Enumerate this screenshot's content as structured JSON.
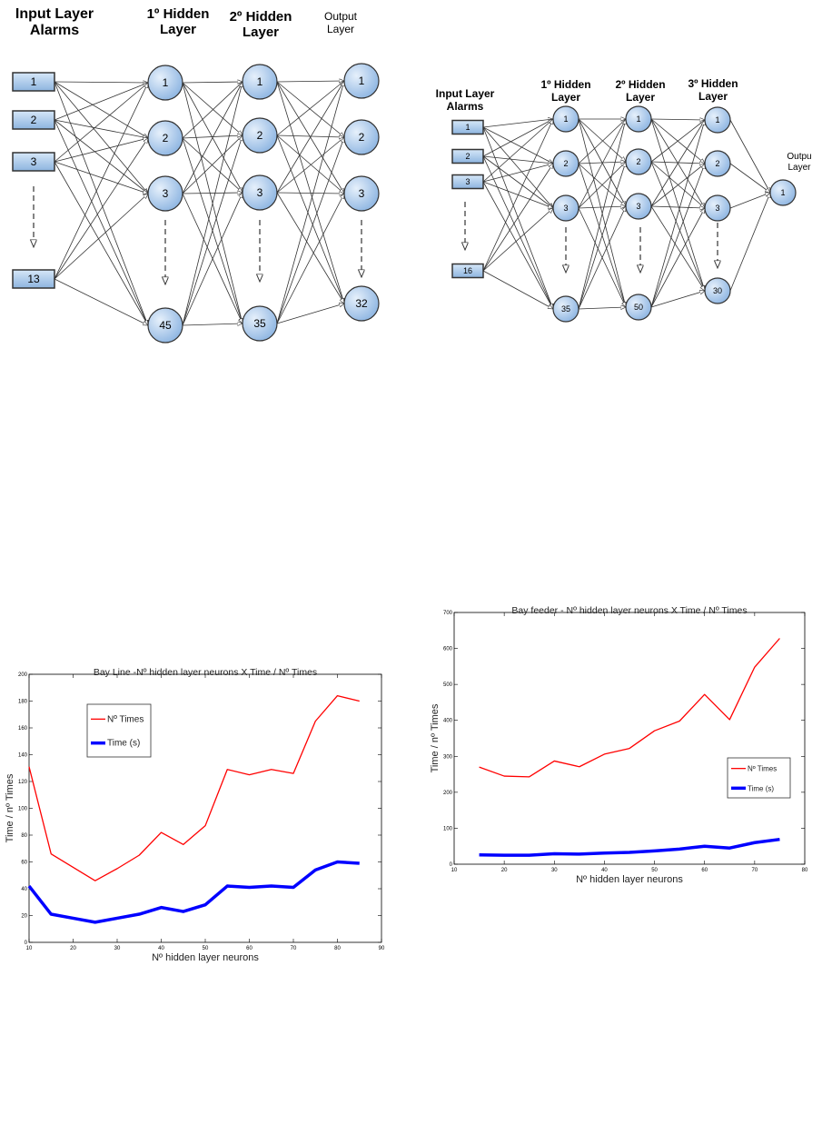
{
  "diagrams": [
    {
      "layers": [
        {
          "title": [
            "Input Layer",
            "Alarms"
          ],
          "kind": "box",
          "nodes": [
            "1",
            "2",
            "3",
            "13"
          ]
        },
        {
          "title": [
            "1º Hidden",
            "Layer"
          ],
          "kind": "circle",
          "nodes": [
            "1",
            "2",
            "3",
            "45"
          ]
        },
        {
          "title": [
            "2º Hidden",
            "Layer"
          ],
          "kind": "circle",
          "nodes": [
            "1",
            "2",
            "3",
            "35"
          ]
        },
        {
          "title": [
            "Output",
            "Layer"
          ],
          "kind": "circle",
          "nodes": [
            "1",
            "2",
            "3",
            "32"
          ]
        }
      ]
    },
    {
      "layers": [
        {
          "title": [
            "Input Layer",
            "Alarms"
          ],
          "kind": "box",
          "nodes": [
            "1",
            "2",
            "3",
            "16"
          ]
        },
        {
          "title": [
            "1º Hidden",
            "Layer"
          ],
          "kind": "circle",
          "nodes": [
            "1",
            "2",
            "3",
            "35"
          ]
        },
        {
          "title": [
            "2º Hidden",
            "Layer"
          ],
          "kind": "circle",
          "nodes": [
            "1",
            "2",
            "3",
            "50"
          ]
        },
        {
          "title": [
            "3º Hidden",
            "Layer"
          ],
          "kind": "circle",
          "nodes": [
            "1",
            "2",
            "3",
            "30"
          ]
        },
        {
          "title": [
            "Outpu",
            "Layer"
          ],
          "kind": "circle",
          "nodes": [
            "1"
          ]
        }
      ]
    }
  ],
  "chart_data": [
    {
      "type": "line",
      "title": "Bay Line -Nº hidden layer neurons X Time / Nº Times",
      "xlabel": "Nº hidden layer neurons",
      "ylabel": "Time / nº Times",
      "xlim": [
        10,
        90
      ],
      "ylim": [
        0,
        200
      ],
      "xticks": [
        10,
        20,
        30,
        40,
        50,
        60,
        70,
        80,
        90
      ],
      "yticks": [
        0,
        20,
        40,
        60,
        80,
        100,
        120,
        140,
        160,
        180,
        200
      ],
      "legend": "top-left",
      "x": [
        10,
        15,
        20,
        25,
        30,
        35,
        40,
        45,
        50,
        55,
        60,
        65,
        70,
        75,
        80,
        85
      ],
      "series": [
        {
          "name": "Nº Times",
          "color": "#ff0000",
          "values": [
            131,
            66,
            56,
            46,
            55,
            65,
            82,
            73,
            87,
            129,
            125,
            129,
            126,
            165,
            184,
            180
          ]
        },
        {
          "name": "Time (s)",
          "color": "#0000ff",
          "values": [
            42,
            21,
            18,
            15,
            18,
            21,
            26,
            23,
            28,
            42,
            41,
            42,
            41,
            54,
            60,
            59
          ]
        }
      ]
    },
    {
      "type": "line",
      "title": "Bay feeder - Nº hidden layer neurons X Time / Nº Times",
      "xlabel": "Nº hidden layer neurons",
      "ylabel": "Time / nº Times",
      "xlim": [
        10,
        80
      ],
      "ylim": [
        0,
        700
      ],
      "xticks": [
        10,
        20,
        30,
        40,
        50,
        60,
        70,
        80
      ],
      "yticks": [
        0,
        100,
        200,
        300,
        400,
        500,
        600,
        700
      ],
      "legend": "center-right",
      "x": [
        15,
        20,
        25,
        30,
        35,
        40,
        45,
        50,
        55,
        60,
        65,
        70,
        75
      ],
      "series": [
        {
          "name": "Nº Times",
          "color": "#ff0000",
          "values": [
            270,
            245,
            243,
            287,
            271,
            306,
            322,
            371,
            398,
            472,
            402,
            548,
            628
          ]
        },
        {
          "name": "Time (s)",
          "color": "#0000ff",
          "values": [
            26,
            25,
            25,
            29,
            28,
            31,
            33,
            37,
            42,
            50,
            45,
            60,
            69
          ]
        }
      ]
    }
  ]
}
